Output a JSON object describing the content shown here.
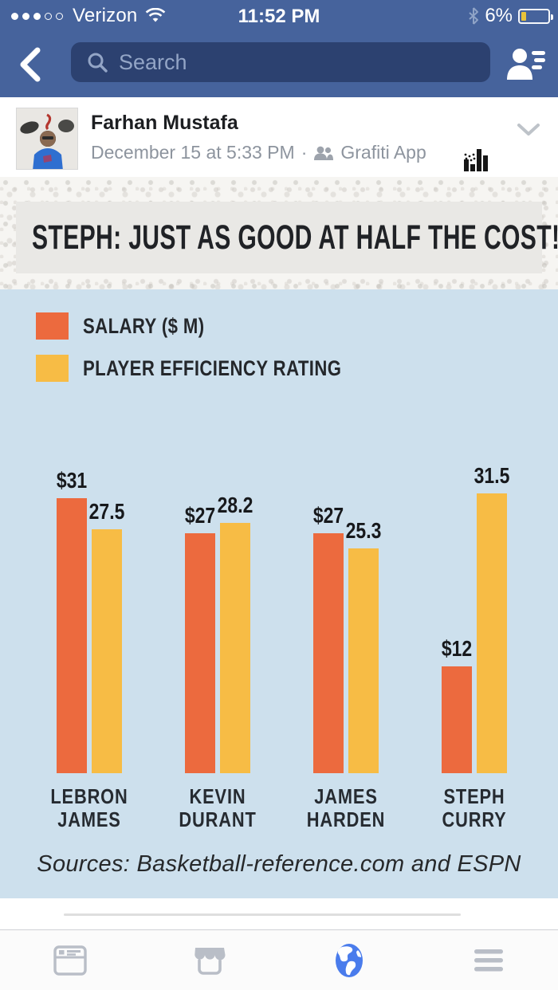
{
  "status_bar": {
    "carrier": "Verizon",
    "time": "11:52 PM",
    "battery_percent": "6%",
    "signal_dots_filled": 3,
    "signal_dots_total": 5,
    "icons": [
      "wifi-icon",
      "bluetooth-icon",
      "battery-icon"
    ]
  },
  "header": {
    "search_placeholder": "Search",
    "icons": [
      "back-chevron-icon",
      "search-icon",
      "friend-requests-icon"
    ]
  },
  "post": {
    "author": "Farhan Mustafa",
    "date": "December 15 at 5:33 PM",
    "meta_separator": "·",
    "audience_icon": "friends-audience-icon",
    "app_name": "Grafiti App",
    "app_logo": "grafiti-bar-chart-logo",
    "collapse_icon": "chevron-down-icon"
  },
  "infographic": {
    "title": "STEPH: JUST AS GOOD AT HALF THE COST!",
    "legend": [
      {
        "label": "SALARY ($ M)",
        "color": "#EC6A3E"
      },
      {
        "label": "PLAYER EFFICIENCY RATING",
        "color": "#F7BC45"
      }
    ],
    "source": "Sources: Basketball-reference.com and ESPN",
    "background_color": "#CDE0ED"
  },
  "chart_data": {
    "type": "bar",
    "categories": [
      "LEBRON JAMES",
      "KEVIN DURANT",
      "JAMES HARDEN",
      "STEPH CURRY"
    ],
    "series": [
      {
        "name": "Salary ($ M)",
        "color": "#EC6A3E",
        "values": [
          31,
          27,
          27,
          12
        ],
        "labels": [
          "$31",
          "$27",
          "$27",
          "$12"
        ]
      },
      {
        "name": "Player Efficiency Rating",
        "color": "#F7BC45",
        "values": [
          27.5,
          28.2,
          25.3,
          31.5
        ],
        "labels": [
          "27.5",
          "28.2",
          "25.3",
          "31.5"
        ]
      }
    ],
    "title": "STEPH: JUST AS GOOD AT HALF THE COST!",
    "xlabel": "",
    "ylabel": "",
    "ylim": [
      0,
      34
    ],
    "grid": false,
    "legend_position": "top-left",
    "value_labels_shown": true
  },
  "tab_bar": {
    "items": [
      {
        "name": "newsfeed",
        "icon": "newsfeed-icon",
        "active": false
      },
      {
        "name": "marketplace",
        "icon": "marketplace-icon",
        "active": false
      },
      {
        "name": "notifications",
        "icon": "globe-icon",
        "active": true
      },
      {
        "name": "menu",
        "icon": "hamburger-menu-icon",
        "active": false
      }
    ],
    "active_color": "#4A7CEC",
    "inactive_color": "#B9BEC7"
  }
}
